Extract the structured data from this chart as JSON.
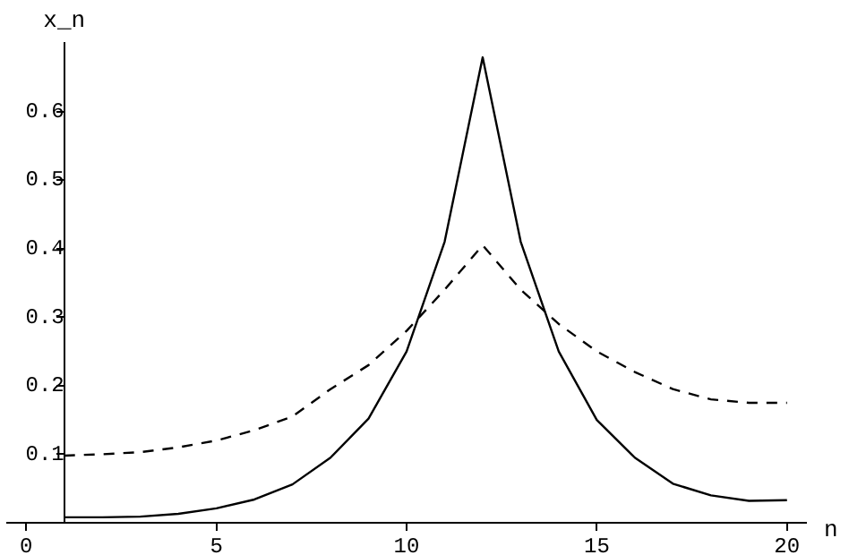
{
  "chart_data": {
    "type": "line",
    "xlabel": "n",
    "ylabel": "x_n",
    "x": [
      1,
      2,
      3,
      4,
      5,
      6,
      7,
      8,
      9,
      10,
      11,
      12,
      13,
      14,
      15,
      16,
      17,
      18,
      19,
      20
    ],
    "series": [
      {
        "color": "#000000",
        "line_style": "solid",
        "values": [
          0.008,
          0.008,
          0.009,
          0.013,
          0.021,
          0.034,
          0.056,
          0.095,
          0.152,
          0.25,
          0.41,
          0.679,
          0.41,
          0.25,
          0.15,
          0.095,
          0.057,
          0.04,
          0.032,
          0.033
        ]
      },
      {
        "color": "#000000",
        "line_style": "dashed",
        "values": [
          0.098,
          0.1,
          0.103,
          0.11,
          0.12,
          0.135,
          0.155,
          0.195,
          0.23,
          0.28,
          0.34,
          0.405,
          0.34,
          0.29,
          0.25,
          0.22,
          0.195,
          0.18,
          0.175,
          0.175
        ]
      }
    ],
    "xlim": [
      -0.5,
      20.5
    ],
    "xticks": [
      0,
      5,
      10,
      15,
      20
    ],
    "ylim": [
      0,
      0.7
    ],
    "yticks": [
      0.1,
      0.2,
      0.3,
      0.4,
      0.5,
      0.6
    ],
    "grid": false,
    "legend": false,
    "marker": "none"
  }
}
